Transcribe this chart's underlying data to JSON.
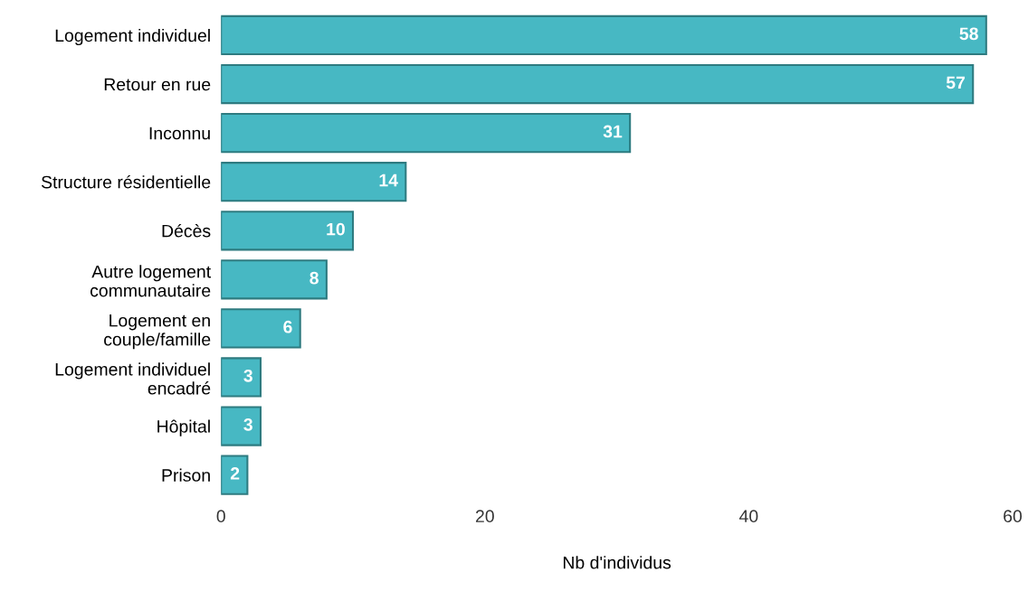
{
  "chart_data": {
    "type": "bar",
    "orientation": "horizontal",
    "xlabel": "Nb d'individus",
    "categories": [
      "Logement individuel",
      "Retour en rue",
      "Inconnu",
      "Structure résidentielle",
      "Décès",
      "Autre logement\ncommunautaire",
      "Logement en\ncouple/famille",
      "Logement individuel\nencadré",
      "Hôpital",
      "Prison"
    ],
    "values": [
      58,
      57,
      31,
      14,
      10,
      8,
      6,
      3,
      3,
      2
    ],
    "color": "#47b8c3",
    "xlim": [
      0,
      60
    ],
    "xticks": [
      0,
      20,
      40,
      60
    ],
    "data_labels": true,
    "grid": false,
    "legend": false
  }
}
